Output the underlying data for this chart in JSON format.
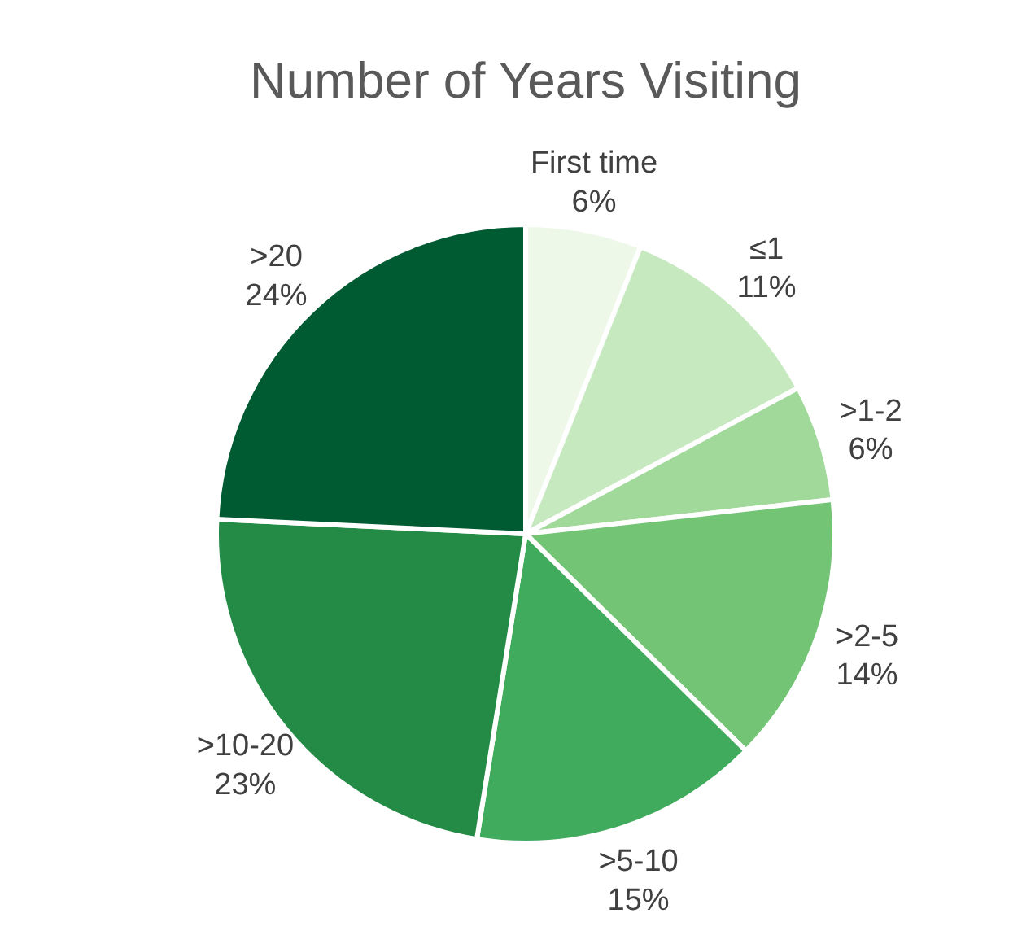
{
  "chart_data": {
    "type": "pie",
    "title": "Number of Years Visiting",
    "categories": [
      "First time",
      "≤1",
      ">1-2",
      ">2-5",
      ">5-10",
      ">10-20",
      ">20"
    ],
    "values": [
      6,
      11,
      6,
      14,
      15,
      23,
      24
    ],
    "value_labels": [
      "6%",
      "11%",
      "6%",
      "14%",
      "15%",
      "23%",
      "24%"
    ],
    "colors": [
      "#edf8e9",
      "#c7e9c0",
      "#a1d99b",
      "#74c476",
      "#41ab5d",
      "#238b45",
      "#005a32"
    ],
    "legend": false
  }
}
